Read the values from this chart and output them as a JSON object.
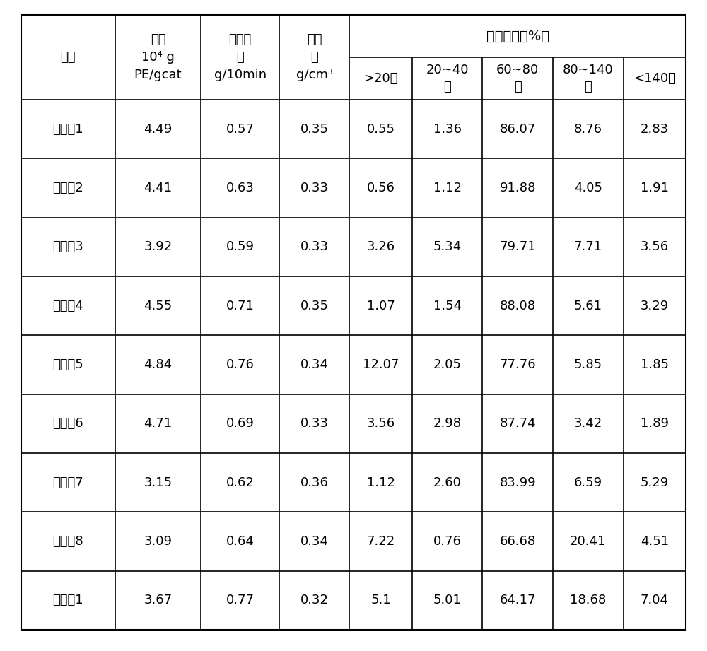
{
  "col_headers_row1": [
    "编号",
    "活性\n10⁴ g\nPE/gcat",
    "熔融指\n数\ng/10min",
    "堆密\n度\ng/cm³",
    "粒度分布（%）"
  ],
  "col_headers_row2": [
    ">20目",
    "20~40\n目",
    "60~80\n目",
    "80~140\n目",
    "<140目"
  ],
  "rows": [
    [
      "实施例1",
      "4.49",
      "0.57",
      "0.35",
      "0.55",
      "1.36",
      "86.07",
      "8.76",
      "2.83"
    ],
    [
      "实施例2",
      "4.41",
      "0.63",
      "0.33",
      "0.56",
      "1.12",
      "91.88",
      "4.05",
      "1.91"
    ],
    [
      "实施例3",
      "3.92",
      "0.59",
      "0.33",
      "3.26",
      "5.34",
      "79.71",
      "7.71",
      "3.56"
    ],
    [
      "实施例4",
      "4.55",
      "0.71",
      "0.35",
      "1.07",
      "1.54",
      "88.08",
      "5.61",
      "3.29"
    ],
    [
      "实施例5",
      "4.84",
      "0.76",
      "0.34",
      "12.07",
      "2.05",
      "77.76",
      "5.85",
      "1.85"
    ],
    [
      "实施例6",
      "4.71",
      "0.69",
      "0.33",
      "3.56",
      "2.98",
      "87.74",
      "3.42",
      "1.89"
    ],
    [
      "实施例7",
      "3.15",
      "0.62",
      "0.36",
      "1.12",
      "2.60",
      "83.99",
      "6.59",
      "5.29"
    ],
    [
      "实施例8",
      "3.09",
      "0.64",
      "0.34",
      "7.22",
      "0.76",
      "66.68",
      "20.41",
      "4.51"
    ],
    [
      "对比例1",
      "3.67",
      "0.77",
      "0.32",
      "5.1",
      "5.01",
      "64.17",
      "18.68",
      "7.04"
    ]
  ],
  "header_line1_label_col0": "编号",
  "header_line1_col1": "活性",
  "header_line1_col1_sub1": "10⁴ g",
  "header_line1_col1_sub2": "PE/gcat",
  "header_line1_col2": "熔融指",
  "header_line1_col2_sub1": "数",
  "header_line1_col2_sub2": "g/10min",
  "header_line1_col3": "堆密",
  "header_line1_col3_sub1": "度",
  "header_line1_col3_sub2": "g/cm³",
  "header_span_label": "粒度分布（%）",
  "sub_col_headers": [
    ">20目",
    "20~40\n目",
    "60~80\n目",
    "80~140\n目",
    "<140目"
  ],
  "bg_color": "#ffffff",
  "text_color": "#000000",
  "border_color": "#000000",
  "font_size": 13,
  "header_font_size": 13
}
